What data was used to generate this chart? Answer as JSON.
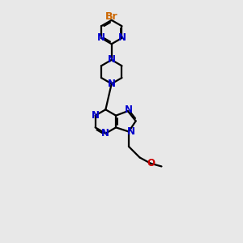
{
  "bg_color": "#e8e8e8",
  "bond_color": "#000000",
  "N_color": "#0000cc",
  "Br_color": "#cc6600",
  "O_color": "#cc0000",
  "line_width": 1.6,
  "font_size": 8.5,
  "xlim": [
    -2.5,
    3.5
  ],
  "ylim": [
    -4.5,
    7.5
  ]
}
